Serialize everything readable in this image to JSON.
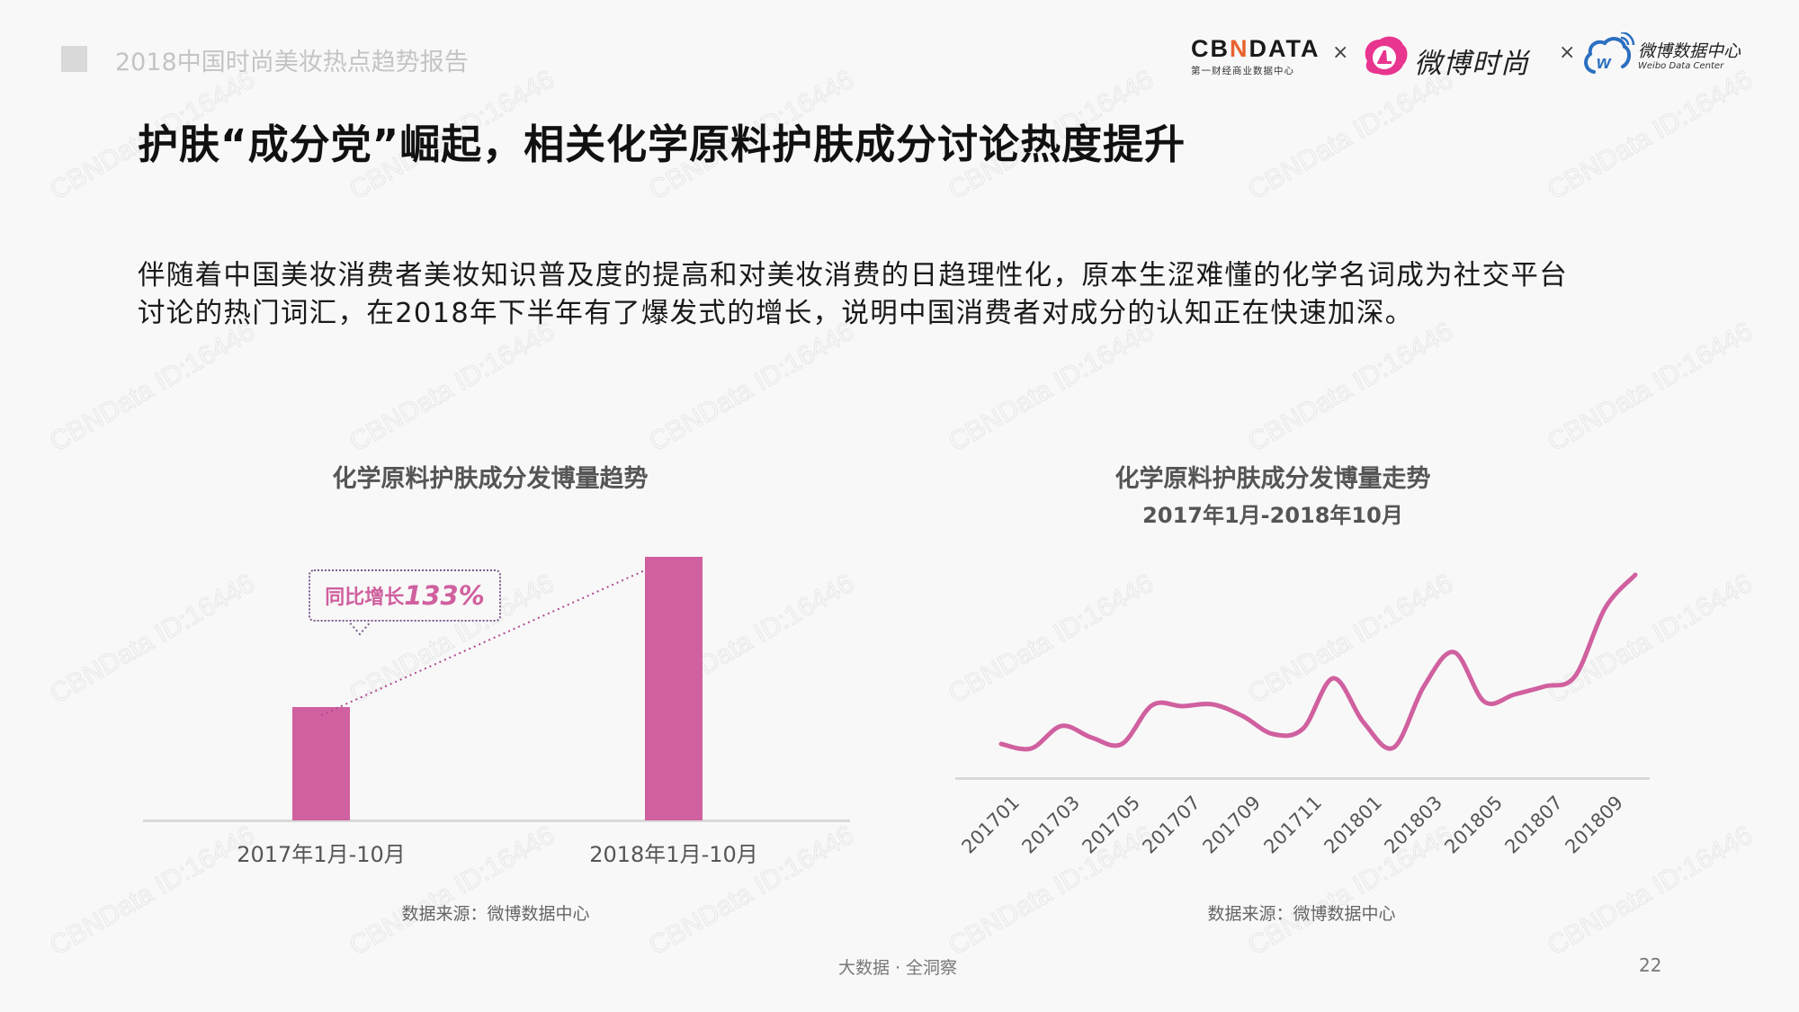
{
  "header": {
    "report_title": "2018中国时尚美妆热点趋势报告",
    "logos": {
      "cbndata_word_pre": "CB",
      "cbndata_word_n": "N",
      "cbndata_word_post": "DATA",
      "cbndata_sub": "第一财经商业数据中心",
      "separator": "×",
      "weibo_fashion": "微博时尚",
      "weibo_data_cn": "微博数据中心",
      "weibo_data_en": "Weibo Data Center"
    }
  },
  "slide": {
    "title": "护肤“成分党”崛起，相关化学原料护肤成分讨论热度提升",
    "paragraph_line1": "伴随着中国美妆消费者美妆知识普及度的提高和对美妆消费的日趋理性化，原本生涩难懂的化学名词成为社交平台",
    "paragraph_line2": "讨论的热门词汇，在2018年下半年有了爆发式的增长，说明中国消费者对成分的认知正在快速加深。"
  },
  "left_chart": {
    "title": "化学原料护肤成分发博量趋势",
    "callout_text": "同比增长",
    "callout_value": "133%",
    "source": "数据来源：微博数据中心"
  },
  "right_chart": {
    "title": "化学原料护肤成分发博量走势",
    "subtitle": "2017年1月-2018年10月",
    "source": "数据来源：微博数据中心"
  },
  "footer": {
    "tagline": "大数据 · 全洞察",
    "page_number": "22"
  },
  "colors": {
    "accent": "#d0609f",
    "axis": "#d9d9d9",
    "callout_border": "#7d5a8c",
    "background": "#f8f8f8"
  },
  "watermark": "CBNData ID:16446",
  "chart_data": [
    {
      "type": "bar",
      "title": "化学原料护肤成分发博量趋势",
      "categories": [
        "2017年1月-10月",
        "2018年1月-10月"
      ],
      "values": [
        100,
        233
      ],
      "value_note": "relative index (2017 = 100); no y-axis shown",
      "annotation": "同比增长133%",
      "xlabel": "",
      "ylabel": "",
      "grid": false,
      "source": "数据来源：微博数据中心"
    },
    {
      "type": "line",
      "title": "化学原料护肤成分发博量走势",
      "subtitle": "2017年1月-2018年10月",
      "x": [
        "201701",
        "201702",
        "201703",
        "201704",
        "201705",
        "201706",
        "201707",
        "201708",
        "201709",
        "201710",
        "201711",
        "201712",
        "201801",
        "201802",
        "201803",
        "201804",
        "201805",
        "201806",
        "201807",
        "201808",
        "201809",
        "201810"
      ],
      "tick_labels": [
        "201701",
        "201703",
        "201705",
        "201707",
        "201709",
        "201711",
        "201801",
        "201803",
        "201805",
        "201807",
        "201809"
      ],
      "values": [
        38,
        33,
        58,
        45,
        38,
        81,
        80,
        82,
        69,
        49,
        55,
        111,
        62,
        34,
        102,
        140,
        85,
        93,
        102,
        113,
        189,
        226
      ],
      "value_note": "relative (estimated from pixel heights); no y-axis shown",
      "smooth": true,
      "grid": false,
      "source": "数据来源：微博数据中心"
    }
  ]
}
